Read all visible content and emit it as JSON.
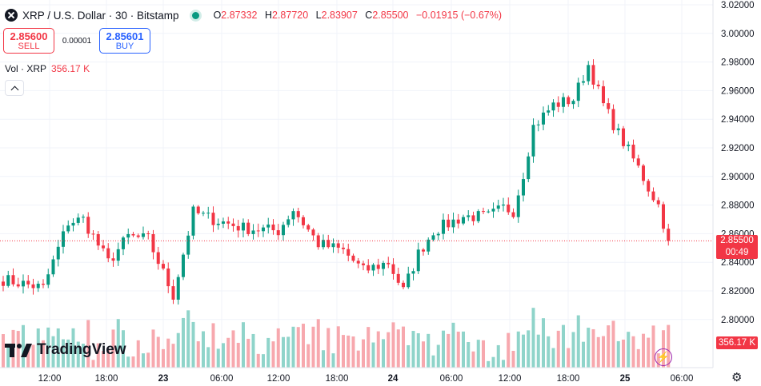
{
  "header": {
    "title": "XRP / U.S. Dollar · 30 · Bitstamp",
    "ohlc": [
      {
        "k": "O",
        "v": "2.87332"
      },
      {
        "k": "H",
        "v": "2.87720"
      },
      {
        "k": "L",
        "v": "2.83907"
      },
      {
        "k": "C",
        "v": "2.85500"
      }
    ],
    "change": "−0.01915 (−0.67%)"
  },
  "trade": {
    "sell_price": "2.85600",
    "sell_label": "SELL",
    "spread": "0.00001",
    "buy_price": "2.85601",
    "buy_label": "BUY"
  },
  "volume_legend": {
    "label": "Vol · XRP",
    "value": "356.17 K"
  },
  "logo": {
    "text": "TradingView"
  },
  "price_tag": {
    "price": "2.85500",
    "countdown": "00:49"
  },
  "volume_tag": "356.17 K",
  "colors": {
    "up": "#089981",
    "down": "#f23645",
    "up_vol": "#8fd4ca",
    "down_vol": "#f7a8ae"
  },
  "chart_data": {
    "type": "candlestick",
    "interval_minutes": 30,
    "y_axis": {
      "range": [
        2.77,
        3.02
      ],
      "tick_labels": [
        "3.02000",
        "3.00000",
        "2.98000",
        "2.96000",
        "2.94000",
        "2.92000",
        "2.90000",
        "2.88000",
        "2.86000",
        "2.84000",
        "2.82000",
        "2.80000"
      ]
    },
    "x_axis": {
      "tick_labels": [
        "12:00",
        "18:00",
        "23",
        "06:00",
        "12:00",
        "18:00",
        "24",
        "06:00",
        "12:00",
        "18:00",
        "25",
        "06:00"
      ]
    },
    "last_price": 2.855,
    "waypoints": [
      {
        "i": 0,
        "p": 2.828
      },
      {
        "i": 8,
        "p": 2.822
      },
      {
        "i": 13,
        "p": 2.868
      },
      {
        "i": 16,
        "p": 2.87
      },
      {
        "i": 21,
        "p": 2.84
      },
      {
        "i": 25,
        "p": 2.858
      },
      {
        "i": 29,
        "p": 2.856
      },
      {
        "i": 34,
        "p": 2.817
      },
      {
        "i": 38,
        "p": 2.875
      },
      {
        "i": 42,
        "p": 2.87
      },
      {
        "i": 48,
        "p": 2.864
      },
      {
        "i": 55,
        "p": 2.862
      },
      {
        "i": 58,
        "p": 2.877
      },
      {
        "i": 63,
        "p": 2.853
      },
      {
        "i": 68,
        "p": 2.848
      },
      {
        "i": 72,
        "p": 2.834
      },
      {
        "i": 77,
        "p": 2.84
      },
      {
        "i": 80,
        "p": 2.82
      },
      {
        "i": 83,
        "p": 2.846
      },
      {
        "i": 86,
        "p": 2.862
      },
      {
        "i": 92,
        "p": 2.872
      },
      {
        "i": 97,
        "p": 2.872
      },
      {
        "i": 100,
        "p": 2.878
      },
      {
        "i": 102,
        "p": 2.876
      },
      {
        "i": 104,
        "p": 2.902
      },
      {
        "i": 106,
        "p": 2.935
      },
      {
        "i": 110,
        "p": 2.95
      },
      {
        "i": 114,
        "p": 2.954
      },
      {
        "i": 117,
        "p": 2.978
      },
      {
        "i": 120,
        "p": 2.95
      },
      {
        "i": 123,
        "p": 2.93
      },
      {
        "i": 127,
        "p": 2.906
      },
      {
        "i": 129,
        "p": 2.892
      },
      {
        "i": 131,
        "p": 2.88
      },
      {
        "i": 133,
        "p": 2.855
      }
    ],
    "volume_max_scale": 1.0
  }
}
